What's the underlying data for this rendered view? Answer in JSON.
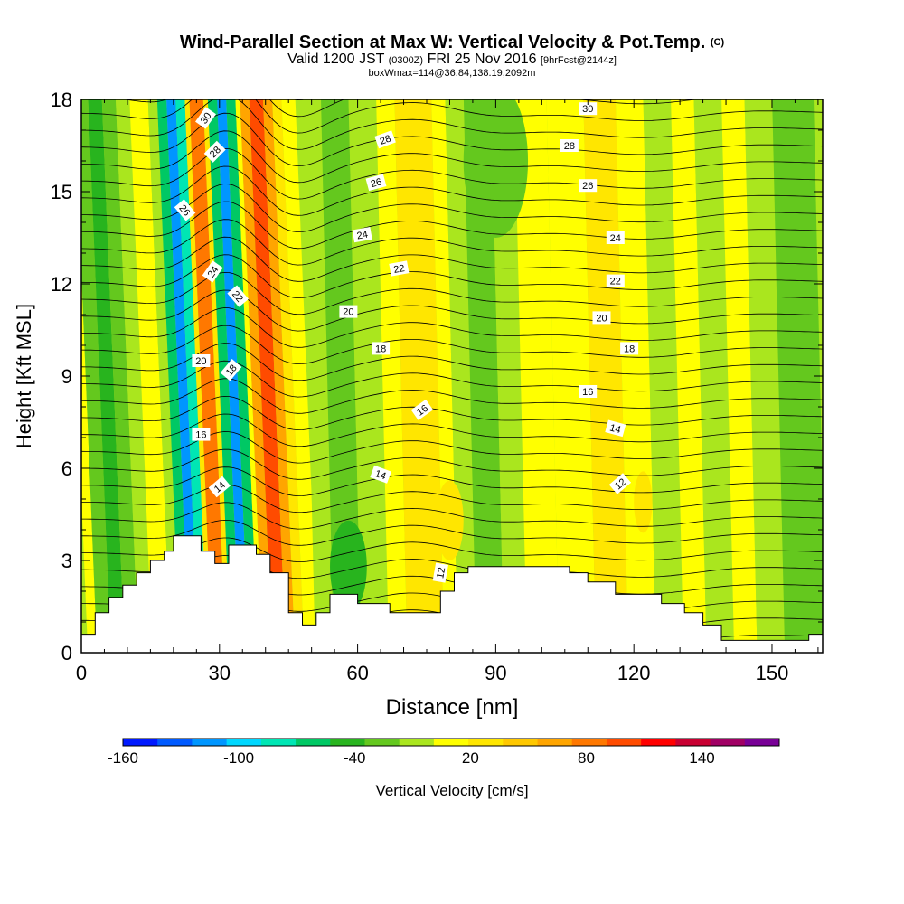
{
  "title": {
    "main": "Wind-Parallel Section at Max W: Vertical Velocity & Pot.Temp.",
    "main_suffix": "(C)",
    "valid_prefix": "Valid 1200 JST",
    "valid_utc": "(0300Z)",
    "valid_date": "FRI 25 Nov 2016",
    "forecast": "[9hrFcst@2144z]",
    "box": "boxWmax=114@36.84,138.19,2092m"
  },
  "chart_data": {
    "type": "heatmap",
    "xlabel": "Distance [nm]",
    "ylabel": "Height [Kft MSL]",
    "xlim": [
      0,
      161
    ],
    "ylim": [
      0,
      18
    ],
    "x_ticks": [
      0,
      30,
      60,
      90,
      120,
      150
    ],
    "y_ticks": [
      0,
      3,
      6,
      9,
      12,
      15,
      18
    ],
    "terrain": [
      [
        0,
        0.6
      ],
      [
        3,
        0.6
      ],
      [
        3,
        1.3
      ],
      [
        6,
        1.3
      ],
      [
        6,
        1.8
      ],
      [
        9,
        1.8
      ],
      [
        9,
        2.2
      ],
      [
        12,
        2.2
      ],
      [
        12,
        2.6
      ],
      [
        15,
        2.6
      ],
      [
        15,
        3.0
      ],
      [
        18,
        3.0
      ],
      [
        18,
        3.3
      ],
      [
        20,
        3.3
      ],
      [
        20,
        3.8
      ],
      [
        26,
        3.8
      ],
      [
        26,
        3.3
      ],
      [
        29,
        3.3
      ],
      [
        29,
        2.9
      ],
      [
        32,
        2.9
      ],
      [
        32,
        3.5
      ],
      [
        38,
        3.5
      ],
      [
        38,
        3.2
      ],
      [
        41,
        3.2
      ],
      [
        41,
        2.6
      ],
      [
        45,
        2.6
      ],
      [
        45,
        1.3
      ],
      [
        48,
        1.3
      ],
      [
        48,
        0.9
      ],
      [
        51,
        0.9
      ],
      [
        51,
        1.3
      ],
      [
        54,
        1.3
      ],
      [
        54,
        1.9
      ],
      [
        60,
        1.9
      ],
      [
        60,
        1.6
      ],
      [
        67,
        1.6
      ],
      [
        67,
        1.3
      ],
      [
        78,
        1.3
      ],
      [
        78,
        2.0
      ],
      [
        81,
        2.0
      ],
      [
        81,
        2.6
      ],
      [
        84,
        2.6
      ],
      [
        84,
        2.8
      ],
      [
        106,
        2.8
      ],
      [
        106,
        2.6
      ],
      [
        110,
        2.6
      ],
      [
        110,
        2.3
      ],
      [
        116,
        2.3
      ],
      [
        116,
        1.9
      ],
      [
        126,
        1.9
      ],
      [
        126,
        1.6
      ],
      [
        131,
        1.6
      ],
      [
        131,
        1.3
      ],
      [
        135,
        1.3
      ],
      [
        135,
        0.9
      ],
      [
        139,
        0.9
      ],
      [
        139,
        0.4
      ],
      [
        158,
        0.4
      ],
      [
        158,
        0.6
      ],
      [
        161,
        0.6
      ]
    ],
    "velocity_bands": [
      {
        "x": 0,
        "w": 2,
        "v": 20
      },
      {
        "x": 2,
        "w": 3,
        "v": -20
      },
      {
        "x": 5,
        "w": 3,
        "v": -40
      },
      {
        "x": 8,
        "w": 3,
        "v": -20
      },
      {
        "x": 11,
        "w": 3,
        "v": 0
      },
      {
        "x": 14,
        "w": 4,
        "v": 20
      },
      {
        "x": 18,
        "w": 2,
        "v": 0
      },
      {
        "x": 20,
        "w": 2,
        "v": -60
      },
      {
        "x": 22,
        "w": 2,
        "v": -120
      },
      {
        "x": 24,
        "w": 2,
        "v": -80
      },
      {
        "x": 26,
        "w": 1,
        "v": 40
      },
      {
        "x": 27,
        "w": 3,
        "v": 100
      },
      {
        "x": 30,
        "w": 1,
        "v": 40
      },
      {
        "x": 31,
        "w": 2,
        "v": -60
      },
      {
        "x": 33,
        "w": 2,
        "v": -120
      },
      {
        "x": 35,
        "w": 2,
        "v": -60
      },
      {
        "x": 37,
        "w": 1,
        "v": 20
      },
      {
        "x": 38,
        "w": 2,
        "v": 80
      },
      {
        "x": 40,
        "w": 3,
        "v": 120
      },
      {
        "x": 43,
        "w": 2,
        "v": 80
      },
      {
        "x": 45,
        "w": 2,
        "v": 40
      },
      {
        "x": 47,
        "w": 3,
        "v": 20
      },
      {
        "x": 50,
        "w": 4,
        "v": 0
      },
      {
        "x": 54,
        "w": 6,
        "v": -20
      },
      {
        "x": 60,
        "w": 6,
        "v": 0
      },
      {
        "x": 66,
        "w": 4,
        "v": 20
      },
      {
        "x": 70,
        "w": 8,
        "v": 40
      },
      {
        "x": 78,
        "w": 3,
        "v": 20
      },
      {
        "x": 81,
        "w": 4,
        "v": 0
      },
      {
        "x": 85,
        "w": 6,
        "v": -20
      },
      {
        "x": 91,
        "w": 5,
        "v": 0
      },
      {
        "x": 96,
        "w": 7,
        "v": 20
      },
      {
        "x": 103,
        "w": 8,
        "v": 20
      },
      {
        "x": 111,
        "w": 7,
        "v": 40
      },
      {
        "x": 118,
        "w": 6,
        "v": 20
      },
      {
        "x": 124,
        "w": 6,
        "v": 0
      },
      {
        "x": 130,
        "w": 5,
        "v": 20
      },
      {
        "x": 135,
        "w": 6,
        "v": 0
      },
      {
        "x": 141,
        "w": 5,
        "v": 20
      },
      {
        "x": 146,
        "w": 6,
        "v": 0
      },
      {
        "x": 152,
        "w": 9,
        "v": -20
      }
    ],
    "velocity_blobs": [
      {
        "x": 80,
        "y": 4.3,
        "rx": 3,
        "ry": 1.3,
        "v": 40
      },
      {
        "x": 122,
        "y": 4.9,
        "rx": 2,
        "ry": 1.0,
        "v": 40
      },
      {
        "x": 58,
        "y": 2.8,
        "rx": 4,
        "ry": 1.5,
        "v": -40
      },
      {
        "x": 90,
        "y": 16.0,
        "rx": 7,
        "ry": 2.5,
        "v": -20
      },
      {
        "x": 74,
        "y": 9.5,
        "rx": 3,
        "ry": 3.5,
        "v": 40
      }
    ],
    "theta_labels": [
      {
        "text": "30",
        "x": 27,
        "y": 17.4,
        "angle": -55
      },
      {
        "text": "28",
        "x": 29,
        "y": 16.3,
        "angle": -45
      },
      {
        "text": "26",
        "x": 22.5,
        "y": 14.4,
        "angle": 50
      },
      {
        "text": "24",
        "x": 28.5,
        "y": 12.4,
        "angle": -55
      },
      {
        "text": "22",
        "x": 34,
        "y": 11.6,
        "angle": 50
      },
      {
        "text": "20",
        "x": 26,
        "y": 9.5,
        "angle": 0
      },
      {
        "text": "18",
        "x": 32.5,
        "y": 9.2,
        "angle": -50
      },
      {
        "text": "16",
        "x": 26,
        "y": 7.1,
        "angle": 0
      },
      {
        "text": "14",
        "x": 30,
        "y": 5.4,
        "angle": -40
      },
      {
        "text": "28",
        "x": 66,
        "y": 16.7,
        "angle": -20
      },
      {
        "text": "26",
        "x": 64,
        "y": 15.3,
        "angle": -15
      },
      {
        "text": "24",
        "x": 61,
        "y": 13.6,
        "angle": -10
      },
      {
        "text": "22",
        "x": 69,
        "y": 12.5,
        "angle": -10
      },
      {
        "text": "20",
        "x": 58,
        "y": 11.1,
        "angle": 0
      },
      {
        "text": "18",
        "x": 65,
        "y": 9.9,
        "angle": 0
      },
      {
        "text": "16",
        "x": 74,
        "y": 7.9,
        "angle": -35
      },
      {
        "text": "14",
        "x": 65,
        "y": 5.8,
        "angle": 20
      },
      {
        "text": "12",
        "x": 78,
        "y": 2.6,
        "angle": -80
      },
      {
        "text": "30",
        "x": 110,
        "y": 17.7,
        "angle": 0
      },
      {
        "text": "28",
        "x": 106,
        "y": 16.5,
        "angle": 0
      },
      {
        "text": "26",
        "x": 110,
        "y": 15.2,
        "angle": 0
      },
      {
        "text": "24",
        "x": 116,
        "y": 13.5,
        "angle": 0
      },
      {
        "text": "22",
        "x": 116,
        "y": 12.1,
        "angle": 0
      },
      {
        "text": "20",
        "x": 113,
        "y": 10.9,
        "angle": 0
      },
      {
        "text": "18",
        "x": 119,
        "y": 9.9,
        "angle": 0
      },
      {
        "text": "16",
        "x": 110,
        "y": 8.5,
        "angle": 0
      },
      {
        "text": "14",
        "x": 116,
        "y": 7.3,
        "angle": 15
      },
      {
        "text": "12",
        "x": 117,
        "y": 5.5,
        "angle": -40
      }
    ],
    "colorbar": {
      "label": "Vertical Velocity [cm/s]",
      "tick_labels": [
        "-160",
        "-100",
        "-40",
        "20",
        "80",
        "140"
      ],
      "tick_values": [
        -160,
        -100,
        -40,
        20,
        80,
        140
      ],
      "vmin": -160,
      "vmax": 180,
      "step": 20,
      "colors": [
        "#0019ff",
        "#005aff",
        "#0096ff",
        "#00d7ff",
        "#00e6b4",
        "#00c864",
        "#28b41e",
        "#64c81e",
        "#aae61e",
        "#ffff00",
        "#ffe600",
        "#ffc800",
        "#ffa500",
        "#ff7800",
        "#ff4b00",
        "#ff0000",
        "#c80032",
        "#a00064",
        "#780096"
      ]
    }
  }
}
